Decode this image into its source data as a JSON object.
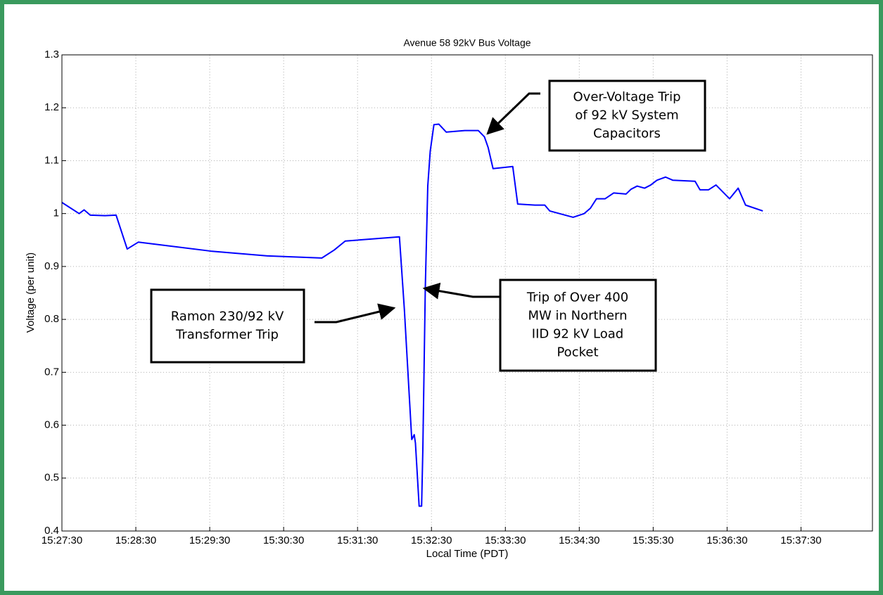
{
  "chart_data": {
    "type": "line",
    "title": "Avenue 58 92kV Bus Voltage",
    "x_label": "Local Time (PDT)",
    "y_label": "Voltage (per unit)",
    "xlim": [
      55650,
      56308
    ],
    "ylim": [
      0.4,
      1.3
    ],
    "xticks": [
      {
        "value": 55650,
        "label": "15:27:30"
      },
      {
        "value": 55710,
        "label": "15:28:30"
      },
      {
        "value": 55770,
        "label": "15:29:30"
      },
      {
        "value": 55830,
        "label": "15:30:30"
      },
      {
        "value": 55890,
        "label": "15:31:30"
      },
      {
        "value": 55950,
        "label": "15:32:30"
      },
      {
        "value": 56010,
        "label": "15:33:30"
      },
      {
        "value": 56070,
        "label": "15:34:30"
      },
      {
        "value": 56130,
        "label": "15:35:30"
      },
      {
        "value": 56190,
        "label": "15:36:30"
      },
      {
        "value": 56250,
        "label": "15:37:30"
      }
    ],
    "yticks": [
      0.4,
      0.5,
      0.6,
      0.7,
      0.8,
      0.9,
      1,
      1.1,
      1.2,
      1.3
    ],
    "grid": true,
    "x": [
      55650,
      55664,
      55668,
      55673,
      55685,
      55694,
      55703,
      55712,
      55771,
      55817,
      55861,
      55871,
      55880,
      55924,
      55928,
      55934,
      55936,
      55937,
      55940,
      55942,
      55943,
      55945,
      55947,
      55949,
      55952,
      55956,
      55962,
      55977,
      55988,
      55993,
      55996,
      56000,
      56016,
      56020,
      56034,
      56042,
      56046,
      56065,
      56074,
      56079,
      56084,
      56091,
      56098,
      56108,
      56112,
      56117,
      56123,
      56128,
      56133,
      56140,
      56146,
      56164,
      56168,
      56175,
      56181,
      56192,
      56199,
      56205,
      56219
    ],
    "series": [
      {
        "color": "#0000ff",
        "values": [
          1.021,
          1.0,
          1.007,
          0.997,
          0.996,
          0.997,
          0.933,
          0.946,
          0.929,
          0.92,
          0.916,
          0.931,
          0.948,
          0.956,
          0.819,
          0.573,
          0.582,
          0.566,
          0.447,
          0.447,
          0.553,
          0.859,
          1.052,
          1.118,
          1.168,
          1.169,
          1.154,
          1.157,
          1.157,
          1.145,
          1.125,
          1.085,
          1.089,
          1.018,
          1.016,
          1.016,
          1.005,
          0.993,
          1.0,
          1.01,
          1.028,
          1.028,
          1.039,
          1.037,
          1.046,
          1.052,
          1.048,
          1.054,
          1.063,
          1.069,
          1.063,
          1.061,
          1.045,
          1.045,
          1.054,
          1.028,
          1.048,
          1.016,
          1.005
        ]
      }
    ],
    "annotations": [
      {
        "lines": [
          "Over-Voltage Trip",
          "of 92 kV System",
          "Capacitors"
        ]
      },
      {
        "lines": [
          "Trip of Over 400",
          "MW in Northern",
          "IID 92 kV Load",
          "Pocket"
        ]
      },
      {
        "lines": [
          "Ramon 230/92 kV",
          "Transformer Trip"
        ]
      }
    ]
  }
}
